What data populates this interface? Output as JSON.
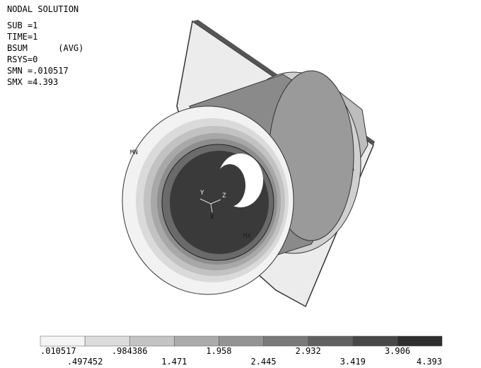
{
  "header": {
    "title": "NODAL SOLUTION",
    "lines": [
      "SUB =1",
      "TIME=1",
      "BSUM      (AVG)",
      "RSYS=0",
      "SMN =.010517",
      "SMX =4.393"
    ]
  },
  "model_labels": {
    "min": "MN",
    "max": "MX",
    "y_axis": "Y",
    "z_axis": "Z",
    "x_axis": "X"
  },
  "legend": {
    "colors": [
      "#f4f4f4",
      "#dcdcdc",
      "#c4c4c4",
      "#ababab",
      "#939393",
      "#7a7a7a",
      "#616161",
      "#484848",
      "#2e2e2e"
    ],
    "labels": [
      ".010517",
      ".497452",
      ".984386",
      "1.471",
      "1.958",
      "2.445",
      "2.932",
      "3.419",
      "3.906",
      "4.393"
    ]
  }
}
